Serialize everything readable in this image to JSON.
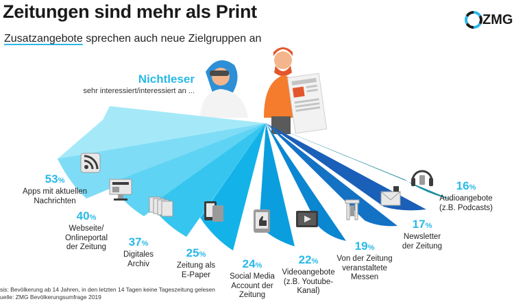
{
  "title": "Zeitungen sind mehr als Print",
  "subtitle": {
    "part1": "Zusatzangebote",
    "part2": " sprechen auch neue Zielgruppen an"
  },
  "brand": {
    "name": "ZMG"
  },
  "colors": {
    "accent": "#29b8e8",
    "fan": [
      "#8fe3f8",
      "#7fdcf6",
      "#5fd3f3",
      "#35c5ef",
      "#13b3e9",
      "#0a9ede",
      "#0b86d1",
      "#1472c5",
      "#1a5fb8",
      "#1f8f9e"
    ]
  },
  "chart_data": {
    "type": "bar",
    "title": "Nichtleser",
    "subtitle": "sehr interessiert/interessiert an ...",
    "categories": [
      "Apps mit aktuellen Nachrichten",
      "Webseite/ Onlineportal der Zeitung",
      "Digitales Archiv",
      "Zeitung als E-Paper",
      "Social Media Account der Zeitung",
      "Videoangebote (z.B. Youtube-Kanal)",
      "Von der Zeitung veranstaltete Messen",
      "Newsletter der Zeitung",
      "Audioangebote (z.B. Podcasts)"
    ],
    "values": [
      53,
      40,
      37,
      25,
      24,
      22,
      19,
      17,
      16
    ],
    "unit": "%",
    "items": [
      {
        "value": "53",
        "lines": [
          "Apps mit aktuellen",
          "Nachrichten"
        ],
        "icon": "rss-icon"
      },
      {
        "value": "40",
        "lines": [
          "Webseite/",
          "Onlineportal",
          "der Zeitung"
        ],
        "icon": "desktop-icon"
      },
      {
        "value": "37",
        "lines": [
          "Digitales",
          "Archiv"
        ],
        "icon": "archive-icon"
      },
      {
        "value": "25",
        "lines": [
          "Zeitung als",
          "E-Paper"
        ],
        "icon": "tablet-icon"
      },
      {
        "value": "24",
        "lines": [
          "Social Media",
          "Account der",
          "Zeitung"
        ],
        "icon": "thumbs-up-icon"
      },
      {
        "value": "22",
        "lines": [
          "Videoangebote",
          "(z.B. Youtube-",
          "Kanal)"
        ],
        "icon": "video-icon"
      },
      {
        "value": "19",
        "lines": [
          "Von der Zeitung",
          "veranstaltete",
          "Messen"
        ],
        "icon": "fair-stand-icon"
      },
      {
        "value": "17",
        "lines": [
          "Newsletter",
          "der Zeitung"
        ],
        "icon": "mail-icon"
      },
      {
        "value": "16",
        "lines": [
          "Audioangebote",
          "(z.B. Podcasts)"
        ],
        "icon": "headphones-icon"
      }
    ]
  },
  "footnote": {
    "line1": "sis: Bevölkerung ab 14 Jahren, in den letzten 14 Tagen keine Tageszeitung gelesen",
    "line2": "uelle: ZMG Bevölkerungsumfrage 2019"
  }
}
